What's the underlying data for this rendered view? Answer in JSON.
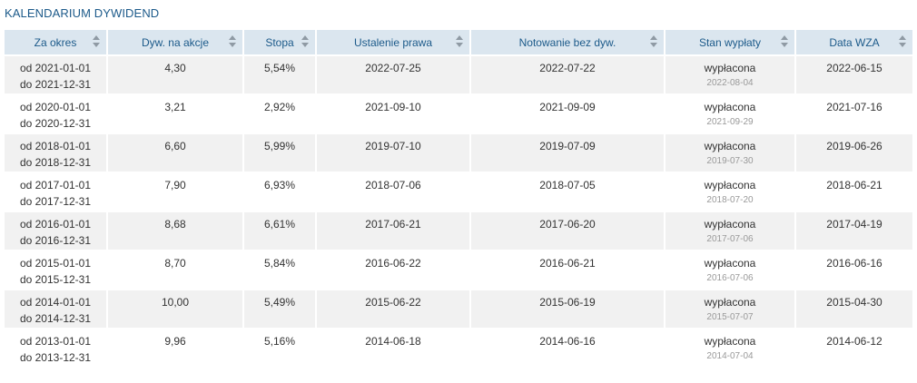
{
  "title": "KALENDARIUM DYWIDEND",
  "columns": [
    "Za okres",
    "Dyw. na akcje",
    "Stopa",
    "Ustalenie prawa",
    "Notowanie bez dyw.",
    "Stan wypłaty",
    "Data WZA"
  ],
  "rows": [
    {
      "from": "od 2021-01-01",
      "to": "do 2021-12-31",
      "dividend": "4,30",
      "rate": "5,54%",
      "record_date": "2022-07-25",
      "ex_date": "2022-07-22",
      "status": "wypłacona",
      "pay_date": "2022-08-04",
      "agm": "2022-06-15"
    },
    {
      "from": "od 2020-01-01",
      "to": "do 2020-12-31",
      "dividend": "3,21",
      "rate": "2,92%",
      "record_date": "2021-09-10",
      "ex_date": "2021-09-09",
      "status": "wypłacona",
      "pay_date": "2021-09-29",
      "agm": "2021-07-16"
    },
    {
      "from": "od 2018-01-01",
      "to": "do 2018-12-31",
      "dividend": "6,60",
      "rate": "5,99%",
      "record_date": "2019-07-10",
      "ex_date": "2019-07-09",
      "status": "wypłacona",
      "pay_date": "2019-07-30",
      "agm": "2019-06-26"
    },
    {
      "from": "od 2017-01-01",
      "to": "do 2017-12-31",
      "dividend": "7,90",
      "rate": "6,93%",
      "record_date": "2018-07-06",
      "ex_date": "2018-07-05",
      "status": "wypłacona",
      "pay_date": "2018-07-20",
      "agm": "2018-06-21"
    },
    {
      "from": "od 2016-01-01",
      "to": "do 2016-12-31",
      "dividend": "8,68",
      "rate": "6,61%",
      "record_date": "2017-06-21",
      "ex_date": "2017-06-20",
      "status": "wypłacona",
      "pay_date": "2017-07-06",
      "agm": "2017-04-19"
    },
    {
      "from": "od 2015-01-01",
      "to": "do 2015-12-31",
      "dividend": "8,70",
      "rate": "5,84%",
      "record_date": "2016-06-22",
      "ex_date": "2016-06-21",
      "status": "wypłacona",
      "pay_date": "2016-07-06",
      "agm": "2016-06-16"
    },
    {
      "from": "od 2014-01-01",
      "to": "do 2014-12-31",
      "dividend": "10,00",
      "rate": "5,49%",
      "record_date": "2015-06-22",
      "ex_date": "2015-06-19",
      "status": "wypłacona",
      "pay_date": "2015-07-07",
      "agm": "2015-04-30"
    },
    {
      "from": "od 2013-01-01",
      "to": "do 2013-12-31",
      "dividend": "9,96",
      "rate": "5,16%",
      "record_date": "2014-06-18",
      "ex_date": "2014-06-16",
      "status": "wypłacona",
      "pay_date": "2014-07-04",
      "agm": "2014-06-12"
    }
  ],
  "colors": {
    "title": "#1c5a8a",
    "header_bg": "#dbe6ef",
    "row_alt": "#f1f1f1",
    "muted": "#999999"
  },
  "icons": {
    "sort": "sort-arrows-icon"
  }
}
